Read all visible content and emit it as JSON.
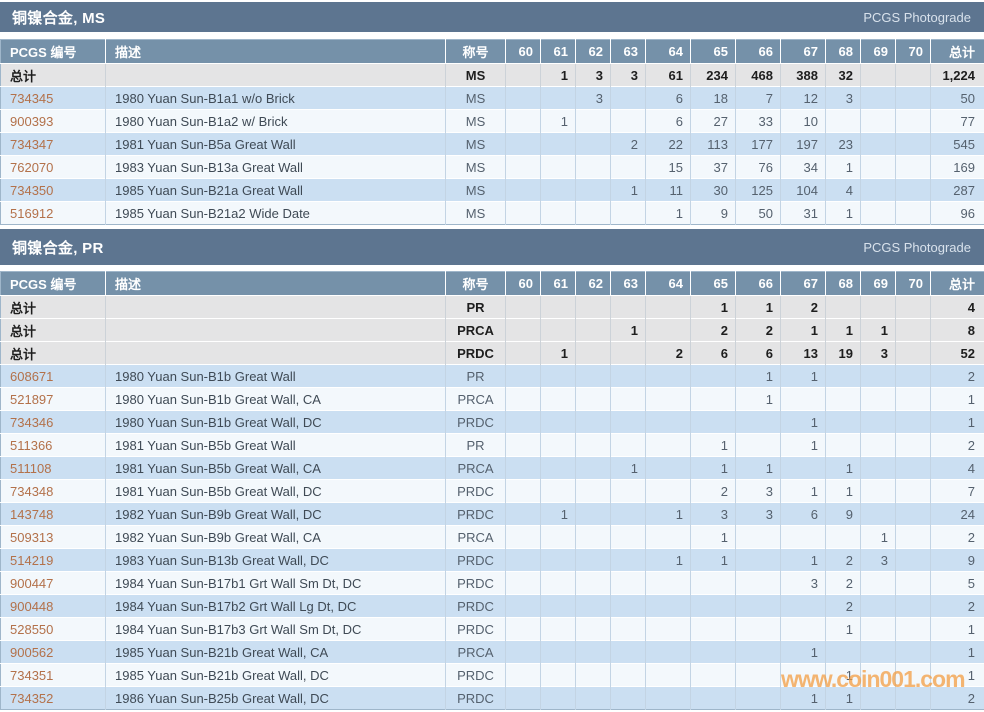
{
  "watermark": "www.coin001.com",
  "photograde_label": "PCGS Photograde",
  "total_row_label": "总计",
  "columns": {
    "pcgs": "PCGS 编号",
    "desc": "描述",
    "designation": "称号",
    "total": "总计",
    "grades": [
      "60",
      "61",
      "62",
      "63",
      "64",
      "65",
      "66",
      "67",
      "68",
      "69",
      "70"
    ]
  },
  "colors": {
    "section_bar": "#5d7590",
    "column_header": "#7591a9",
    "row_blue": "#cbdff2",
    "row_light": "#f3f8fc",
    "row_total_bg": "#e4e4e5",
    "pcgs_link": "#b3714a",
    "watermark_orange": "#f49b3c"
  },
  "sections": [
    {
      "title": "铜镍合金, MS",
      "total_rows": [
        {
          "designation": "MS",
          "grades": [
            "",
            "1",
            "3",
            "3",
            "61",
            "234",
            "468",
            "388",
            "32",
            "",
            ""
          ],
          "total": "1,224"
        }
      ],
      "rows": [
        {
          "pcgs": "734345",
          "desc": "1980 Yuan Sun-B1a1 w/o Brick",
          "designation": "MS",
          "grades": [
            "",
            "",
            "3",
            "",
            "6",
            "18",
            "7",
            "12",
            "3",
            "",
            ""
          ],
          "total": "50"
        },
        {
          "pcgs": "900393",
          "desc": "1980 Yuan Sun-B1a2 w/ Brick",
          "designation": "MS",
          "grades": [
            "",
            "1",
            "",
            "",
            "6",
            "27",
            "33",
            "10",
            "",
            "",
            ""
          ],
          "total": "77"
        },
        {
          "pcgs": "734347",
          "desc": "1981 Yuan Sun-B5a Great Wall",
          "designation": "MS",
          "grades": [
            "",
            "",
            "",
            "2",
            "22",
            "113",
            "177",
            "197",
            "23",
            "",
            ""
          ],
          "total": "545"
        },
        {
          "pcgs": "762070",
          "desc": "1983 Yuan Sun-B13a Great Wall",
          "designation": "MS",
          "grades": [
            "",
            "",
            "",
            "",
            "15",
            "37",
            "76",
            "34",
            "1",
            "",
            ""
          ],
          "total": "169"
        },
        {
          "pcgs": "734350",
          "desc": "1985 Yuan Sun-B21a Great Wall",
          "designation": "MS",
          "grades": [
            "",
            "",
            "",
            "1",
            "11",
            "30",
            "125",
            "104",
            "4",
            "",
            ""
          ],
          "total": "287"
        },
        {
          "pcgs": "516912",
          "desc": "1985 Yuan Sun-B21a2 Wide Date",
          "designation": "MS",
          "grades": [
            "",
            "",
            "",
            "",
            "1",
            "9",
            "50",
            "31",
            "1",
            "",
            ""
          ],
          "total": "96"
        }
      ]
    },
    {
      "title": "铜镍合金, PR",
      "total_rows": [
        {
          "designation": "PR",
          "grades": [
            "",
            "",
            "",
            "",
            "",
            "1",
            "1",
            "2",
            "",
            "",
            ""
          ],
          "total": "4"
        },
        {
          "designation": "PRCA",
          "grades": [
            "",
            "",
            "",
            "1",
            "",
            "2",
            "2",
            "1",
            "1",
            "1",
            ""
          ],
          "total": "8"
        },
        {
          "designation": "PRDC",
          "grades": [
            "",
            "1",
            "",
            "",
            "2",
            "6",
            "6",
            "13",
            "19",
            "3",
            ""
          ],
          "total": "52"
        }
      ],
      "rows": [
        {
          "pcgs": "608671",
          "desc": "1980 Yuan Sun-B1b Great Wall",
          "designation": "PR",
          "grades": [
            "",
            "",
            "",
            "",
            "",
            "",
            "1",
            "1",
            "",
            "",
            ""
          ],
          "total": "2"
        },
        {
          "pcgs": "521897",
          "desc": "1980 Yuan Sun-B1b Great Wall, CA",
          "designation": "PRCA",
          "grades": [
            "",
            "",
            "",
            "",
            "",
            "",
            "1",
            "",
            "",
            "",
            ""
          ],
          "total": "1"
        },
        {
          "pcgs": "734346",
          "desc": "1980 Yuan Sun-B1b Great Wall, DC",
          "designation": "PRDC",
          "grades": [
            "",
            "",
            "",
            "",
            "",
            "",
            "",
            "1",
            "",
            "",
            ""
          ],
          "total": "1"
        },
        {
          "pcgs": "511366",
          "desc": "1981 Yuan Sun-B5b Great Wall",
          "designation": "PR",
          "grades": [
            "",
            "",
            "",
            "",
            "",
            "1",
            "",
            "1",
            "",
            "",
            ""
          ],
          "total": "2"
        },
        {
          "pcgs": "511108",
          "desc": "1981 Yuan Sun-B5b Great Wall, CA",
          "designation": "PRCA",
          "grades": [
            "",
            "",
            "",
            "1",
            "",
            "1",
            "1",
            "",
            "1",
            "",
            ""
          ],
          "total": "4"
        },
        {
          "pcgs": "734348",
          "desc": "1981 Yuan Sun-B5b Great Wall, DC",
          "designation": "PRDC",
          "grades": [
            "",
            "",
            "",
            "",
            "",
            "2",
            "3",
            "1",
            "1",
            "",
            ""
          ],
          "total": "7"
        },
        {
          "pcgs": "143748",
          "desc": "1982 Yuan Sun-B9b Great Wall, DC",
          "designation": "PRDC",
          "grades": [
            "",
            "1",
            "",
            "",
            "1",
            "3",
            "3",
            "6",
            "9",
            "",
            ""
          ],
          "total": "24"
        },
        {
          "pcgs": "509313",
          "desc": "1982 Yuan Sun-B9b Great Wall, CA",
          "designation": "PRCA",
          "grades": [
            "",
            "",
            "",
            "",
            "",
            "1",
            "",
            "",
            "",
            "1",
            ""
          ],
          "total": "2"
        },
        {
          "pcgs": "514219",
          "desc": "1983 Yuan Sun-B13b Great Wall, DC",
          "designation": "PRDC",
          "grades": [
            "",
            "",
            "",
            "",
            "1",
            "1",
            "",
            "1",
            "2",
            "3",
            ""
          ],
          "total": "9"
        },
        {
          "pcgs": "900447",
          "desc": "1984 Yuan Sun-B17b1 Grt Wall Sm Dt, DC",
          "designation": "PRDC",
          "grades": [
            "",
            "",
            "",
            "",
            "",
            "",
            "",
            "3",
            "2",
            "",
            ""
          ],
          "total": "5"
        },
        {
          "pcgs": "900448",
          "desc": "1984 Yuan Sun-B17b2 Grt Wall Lg Dt, DC",
          "designation": "PRDC",
          "grades": [
            "",
            "",
            "",
            "",
            "",
            "",
            "",
            "",
            "2",
            "",
            ""
          ],
          "total": "2"
        },
        {
          "pcgs": "528550",
          "desc": "1984 Yuan Sun-B17b3 Grt Wall Sm Dt, DC",
          "designation": "PRDC",
          "grades": [
            "",
            "",
            "",
            "",
            "",
            "",
            "",
            "",
            "1",
            "",
            ""
          ],
          "total": "1"
        },
        {
          "pcgs": "900562",
          "desc": "1985 Yuan Sun-B21b Great Wall, CA",
          "designation": "PRCA",
          "grades": [
            "",
            "",
            "",
            "",
            "",
            "",
            "",
            "1",
            "",
            "",
            ""
          ],
          "total": "1"
        },
        {
          "pcgs": "734351",
          "desc": "1985 Yuan Sun-B21b Great Wall, DC",
          "designation": "PRDC",
          "grades": [
            "",
            "",
            "",
            "",
            "",
            "",
            "",
            "",
            "1",
            "",
            ""
          ],
          "total": "1"
        },
        {
          "pcgs": "734352",
          "desc": "1986 Yuan Sun-B25b Great Wall, DC",
          "designation": "PRDC",
          "grades": [
            "",
            "",
            "",
            "",
            "",
            "",
            "",
            "1",
            "1",
            "",
            ""
          ],
          "total": "2"
        }
      ]
    }
  ]
}
